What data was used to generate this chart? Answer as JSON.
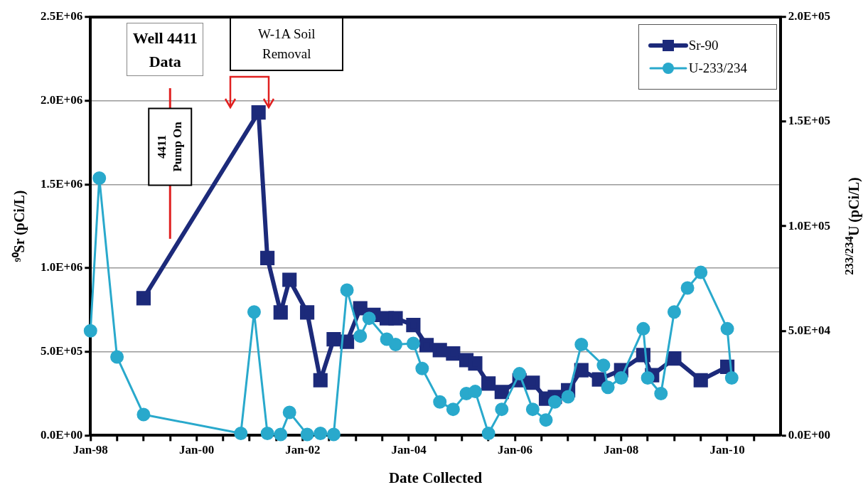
{
  "chart_data": {
    "type": "line",
    "xlabel": "Date Collected",
    "ylabel": "⁹⁰Sr (pCi/L)",
    "y2label": "$^{233/234}$U (pCi/L)",
    "xlim": [
      "1998-01",
      "2011-01"
    ],
    "xticks": [
      {
        "value": "1998-01",
        "label": "Jan-98"
      },
      {
        "value": "1998-07",
        "label": null
      },
      {
        "value": "1999-01",
        "label": null
      },
      {
        "value": "1999-07",
        "label": null
      },
      {
        "value": "2000-01",
        "label": "Jan-00"
      },
      {
        "value": "2000-07",
        "label": null
      },
      {
        "value": "2001-01",
        "label": null
      },
      {
        "value": "2001-07",
        "label": null
      },
      {
        "value": "2002-01",
        "label": "Jan-02"
      },
      {
        "value": "2002-07",
        "label": null
      },
      {
        "value": "2003-01",
        "label": null
      },
      {
        "value": "2003-07",
        "label": null
      },
      {
        "value": "2004-01",
        "label": "Jan-04"
      },
      {
        "value": "2004-07",
        "label": null
      },
      {
        "value": "2005-01",
        "label": null
      },
      {
        "value": "2005-07",
        "label": null
      },
      {
        "value": "2006-01",
        "label": "Jan-06"
      },
      {
        "value": "2006-07",
        "label": null
      },
      {
        "value": "2007-01",
        "label": null
      },
      {
        "value": "2007-07",
        "label": null
      },
      {
        "value": "2008-01",
        "label": "Jan-08"
      },
      {
        "value": "2008-07",
        "label": null
      },
      {
        "value": "2009-01",
        "label": null
      },
      {
        "value": "2009-07",
        "label": null
      },
      {
        "value": "2010-01",
        "label": "Jan-10"
      },
      {
        "value": "2010-07",
        "label": null
      }
    ],
    "ylim": [
      0,
      2500000
    ],
    "yticks": [
      {
        "value": 0,
        "label": "0.0E+00"
      },
      {
        "value": 500000,
        "label": "5.0E+05"
      },
      {
        "value": 1000000,
        "label": "1.0E+06"
      },
      {
        "value": 1500000,
        "label": "1.5E+06"
      },
      {
        "value": 2000000,
        "label": "2.0E+06"
      },
      {
        "value": 2500000,
        "label": "2.5E+06"
      }
    ],
    "y2lim": [
      0,
      200000
    ],
    "y2ticks": [
      {
        "value": 0,
        "label": "0.0E+00"
      },
      {
        "value": 50000,
        "label": "5.0E+04"
      },
      {
        "value": 100000,
        "label": "1.0E+05"
      },
      {
        "value": 150000,
        "label": "1.5E+05"
      },
      {
        "value": 200000,
        "label": "2.0E+05"
      }
    ],
    "grid": "y",
    "legend": "top right",
    "series": [
      {
        "name": "Sr-90",
        "color": "#1c2a7a",
        "marker": "square",
        "x": [
          "1999-01",
          "2001-03",
          "2001-05",
          "2001-08",
          "2001-10",
          "2002-02",
          "2002-05",
          "2002-08",
          "2002-11",
          "2003-02",
          "2003-05",
          "2003-08",
          "2003-10",
          "2004-02",
          "2004-05",
          "2004-08",
          "2004-11",
          "2005-02",
          "2005-04",
          "2005-07",
          "2005-10",
          "2006-02",
          "2006-05",
          "2006-08",
          "2006-10",
          "2007-01",
          "2007-04",
          "2007-08",
          "2008-01",
          "2008-06",
          "2008-08",
          "2009-01",
          "2009-07",
          "2010-01"
        ],
        "values": [
          820000,
          1930000,
          1060000,
          735000,
          930000,
          735000,
          330000,
          575000,
          560000,
          760000,
          720000,
          700000,
          700000,
          660000,
          540000,
          510000,
          490000,
          450000,
          430000,
          310000,
          260000,
          330000,
          315000,
          220000,
          230000,
          270000,
          390000,
          335000,
          390000,
          480000,
          360000,
          460000,
          330000,
          410000
        ]
      },
      {
        "name": "U-233/234",
        "color": "#29a9cc",
        "marker": "circle",
        "axis": "y2",
        "x": [
          "1998-01",
          "1998-03",
          "1998-07",
          "1999-01",
          "2000-11",
          "2001-02",
          "2001-05",
          "2001-08",
          "2001-10",
          "2002-02",
          "2002-05",
          "2002-08",
          "2002-11",
          "2003-02",
          "2003-04",
          "2003-08",
          "2003-10",
          "2004-02",
          "2004-04",
          "2004-08",
          "2004-11",
          "2005-02",
          "2005-04",
          "2005-07",
          "2005-10",
          "2006-02",
          "2006-05",
          "2006-08",
          "2006-10",
          "2007-01",
          "2007-04",
          "2007-09",
          "2007-10",
          "2008-01",
          "2008-06",
          "2008-07",
          "2008-10",
          "2009-01",
          "2009-04",
          "2009-07",
          "2010-01",
          "2010-02"
        ],
        "values": [
          50000,
          123000,
          37500,
          10000,
          1000,
          59000,
          1000,
          500,
          11000,
          500,
          1000,
          500,
          69500,
          47500,
          56000,
          46000,
          43500,
          44000,
          32000,
          16000,
          12500,
          20000,
          21000,
          1000,
          12500,
          29500,
          12500,
          7400,
          16000,
          18500,
          43500,
          33500,
          23000,
          27500,
          51000,
          27500,
          20000,
          59000,
          70500,
          78000,
          51000,
          27500
        ]
      }
    ],
    "ref_lines": [
      {
        "axis": "x",
        "value": "1999-07",
        "label": "4411 Pump On",
        "color": "#e02020"
      }
    ],
    "annotations": [
      "Well 4411 Data",
      "W-1A Soil Removal"
    ]
  }
}
